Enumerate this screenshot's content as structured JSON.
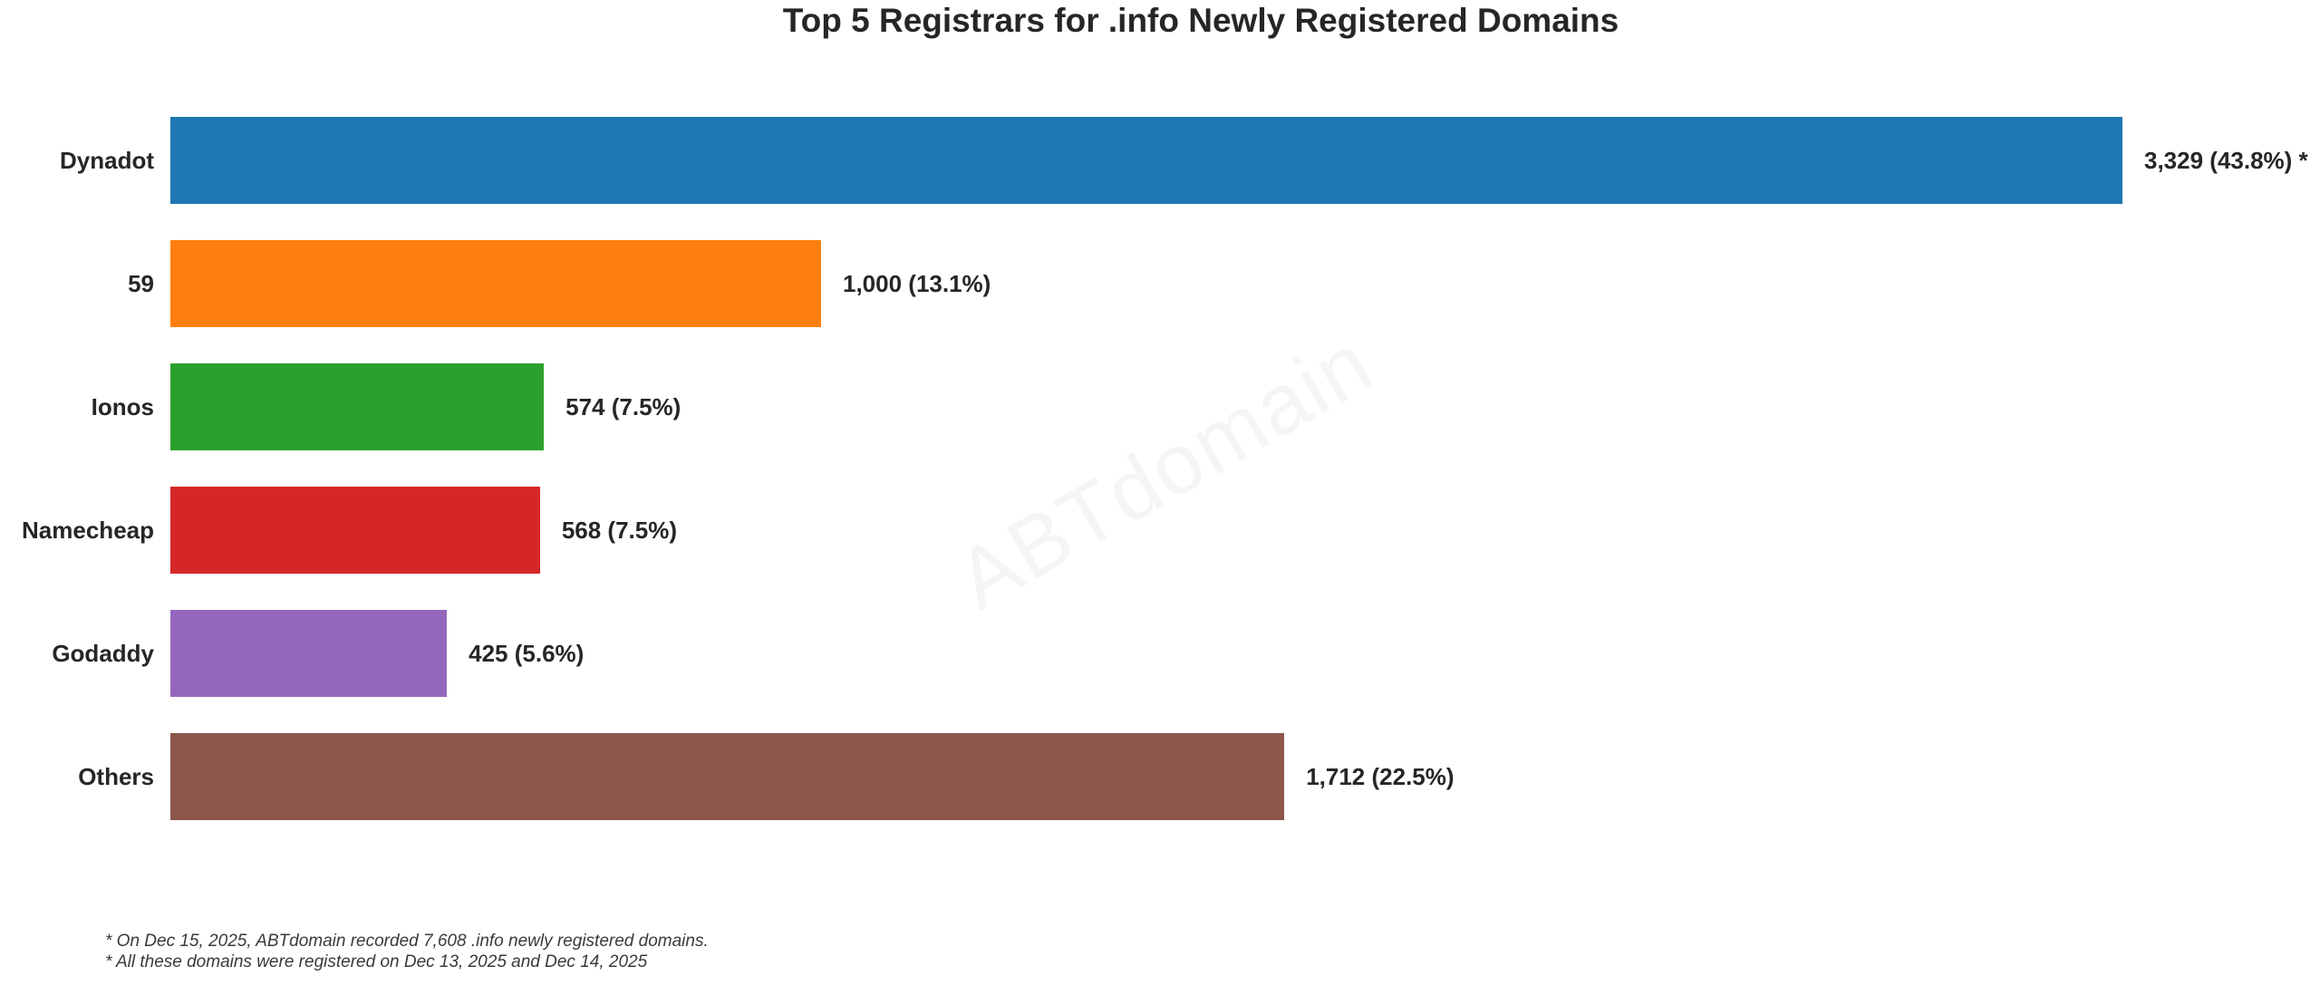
{
  "title": "Top 5 Registrars for .info Newly Registered Domains",
  "watermark": "ABTdomain",
  "footnotes": [
    "* On Dec 15, 2025, ABTdomain recorded 7,608 .info newly registered domains.",
    "* All these domains were registered on Dec 13, 2025 and Dec 14, 2025"
  ],
  "colors": {
    "background": "#ffffff",
    "text": "#262626",
    "footnote_text": "#3a3a3a",
    "watermark_text": "#f5f5f5"
  },
  "chart_data": {
    "type": "bar",
    "orientation": "horizontal",
    "title": "Top 5 Registrars for .info Newly Registered Domains",
    "categories": [
      "Dynadot",
      "59",
      "Ionos",
      "Namecheap",
      "Godaddy",
      "Others"
    ],
    "values": [
      3329,
      1000,
      574,
      568,
      425,
      1712
    ],
    "percentages": [
      43.8,
      13.1,
      7.5,
      7.5,
      5.6,
      22.5
    ],
    "value_labels": [
      "3,329 (43.8%) *",
      "1,000 (13.1%)",
      "574 (7.5%)",
      "568 (7.5%)",
      "425 (5.6%)",
      "1,712 (22.5%)"
    ],
    "bar_colors": [
      "#1f77b4",
      "#ff7f0e",
      "#2ca02c",
      "#d62728",
      "#9467bd",
      "#8c564b"
    ],
    "total_domains": 7608,
    "xlim": [
      0,
      3000
    ],
    "bar_display_note": "Dynadot bar is visually clipped at the right edge of the plot area (xlim max)",
    "grid": false,
    "legend": false,
    "axis_ticks": "none"
  }
}
